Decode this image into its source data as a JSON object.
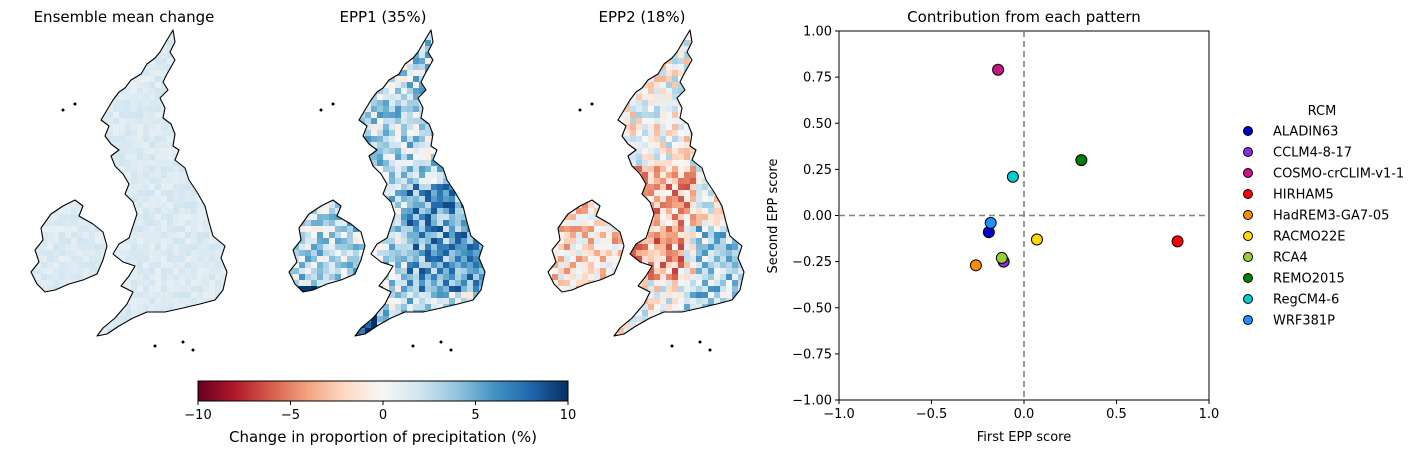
{
  "maps": [
    {
      "title": "Ensemble mean change",
      "style": "mean"
    },
    {
      "title": "EPP1 (35%)",
      "style": "epp1"
    },
    {
      "title": "EPP2 (18%)",
      "style": "epp2"
    }
  ],
  "colorbar": {
    "label": "Change in proportion of precipitation (%)",
    "ticks": [
      "−10",
      "−5",
      "0",
      "5",
      "10"
    ],
    "tick_values": [
      -10,
      -5,
      0,
      5,
      10
    ],
    "range": [
      -10,
      10
    ],
    "colormap": [
      "#67001f",
      "#b2182b",
      "#d6604d",
      "#f4a582",
      "#fddbc7",
      "#f7f7f7",
      "#d1e5f0",
      "#92c5de",
      "#4393c3",
      "#2166ac",
      "#053061"
    ]
  },
  "chart_data": {
    "type": "scatter",
    "title": "Contribution from each pattern",
    "xlabel": "First EPP score",
    "ylabel": "Second EPP score",
    "xlim": [
      -1.0,
      1.0
    ],
    "ylim": [
      -1.0,
      1.0
    ],
    "x_ticks": [
      "−1.0",
      "−0.5",
      "0.0",
      "0.5",
      "1.0"
    ],
    "x_tick_values": [
      -1.0,
      -0.5,
      0.0,
      0.5,
      1.0
    ],
    "y_ticks": [
      "1.00",
      "0.75",
      "0.50",
      "0.25",
      "0.00",
      "−0.25",
      "−0.50",
      "−0.75",
      "−1.00"
    ],
    "y_tick_values": [
      1.0,
      0.75,
      0.5,
      0.25,
      0.0,
      -0.25,
      -0.5,
      -0.75,
      -1.0
    ],
    "grid": false,
    "reference_lines": {
      "x": 0,
      "y": 0,
      "style": "dashed",
      "color": "#808080"
    },
    "legend": {
      "title": "RCM",
      "placement": "right"
    },
    "series": [
      {
        "name": "ALADIN63",
        "color": "#0000cd",
        "x": -0.19,
        "y": -0.09
      },
      {
        "name": "CCLM4-8-17",
        "color": "#8a2be2",
        "x": -0.11,
        "y": -0.25
      },
      {
        "name": "COSMO-crCLIM-v1-1",
        "color": "#c71585",
        "x": -0.14,
        "y": 0.79
      },
      {
        "name": "HIRHAM5",
        "color": "#ff0000",
        "x": 0.83,
        "y": -0.14
      },
      {
        "name": "HadREM3-GA7-05",
        "color": "#ff8c00",
        "x": -0.26,
        "y": -0.27
      },
      {
        "name": "RACMO22E",
        "color": "#ffd700",
        "x": 0.07,
        "y": -0.13
      },
      {
        "name": "RCA4",
        "color": "#9acd32",
        "x": -0.12,
        "y": -0.23
      },
      {
        "name": "REMO2015",
        "color": "#008000",
        "x": 0.31,
        "y": 0.3
      },
      {
        "name": "RegCM4-6",
        "color": "#00ced1",
        "x": -0.06,
        "y": 0.21
      },
      {
        "name": "WRF381P",
        "color": "#1e90ff",
        "x": -0.18,
        "y": -0.04
      }
    ]
  }
}
